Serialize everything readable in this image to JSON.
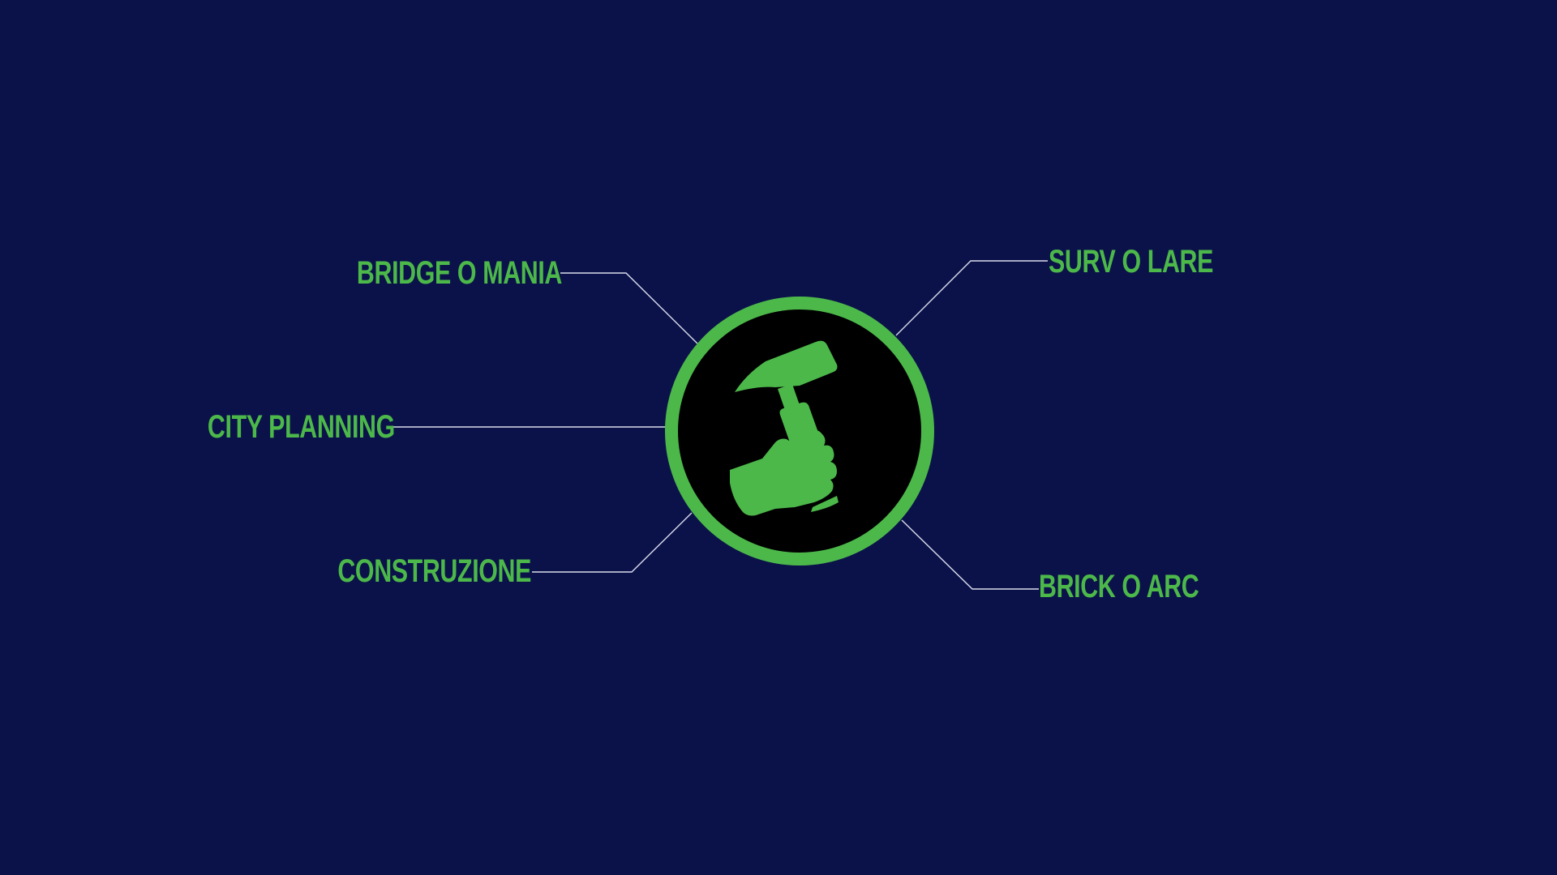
{
  "colors": {
    "background": "#0b1249",
    "accent": "#4cb84a",
    "hub_fill": "#000000",
    "connector": "#d9dcec"
  },
  "hub": {
    "icon": "hand-holding-hammer-icon"
  },
  "nodes": [
    {
      "id": "bridge",
      "label": "BRIDGE O MANIA"
    },
    {
      "id": "city",
      "label": "CITY PLANNING"
    },
    {
      "id": "costruzione",
      "label": "CONSTRUZIONE"
    },
    {
      "id": "surv",
      "label": "SURV O LARE"
    },
    {
      "id": "brick",
      "label": "BRICK O ARC"
    }
  ]
}
